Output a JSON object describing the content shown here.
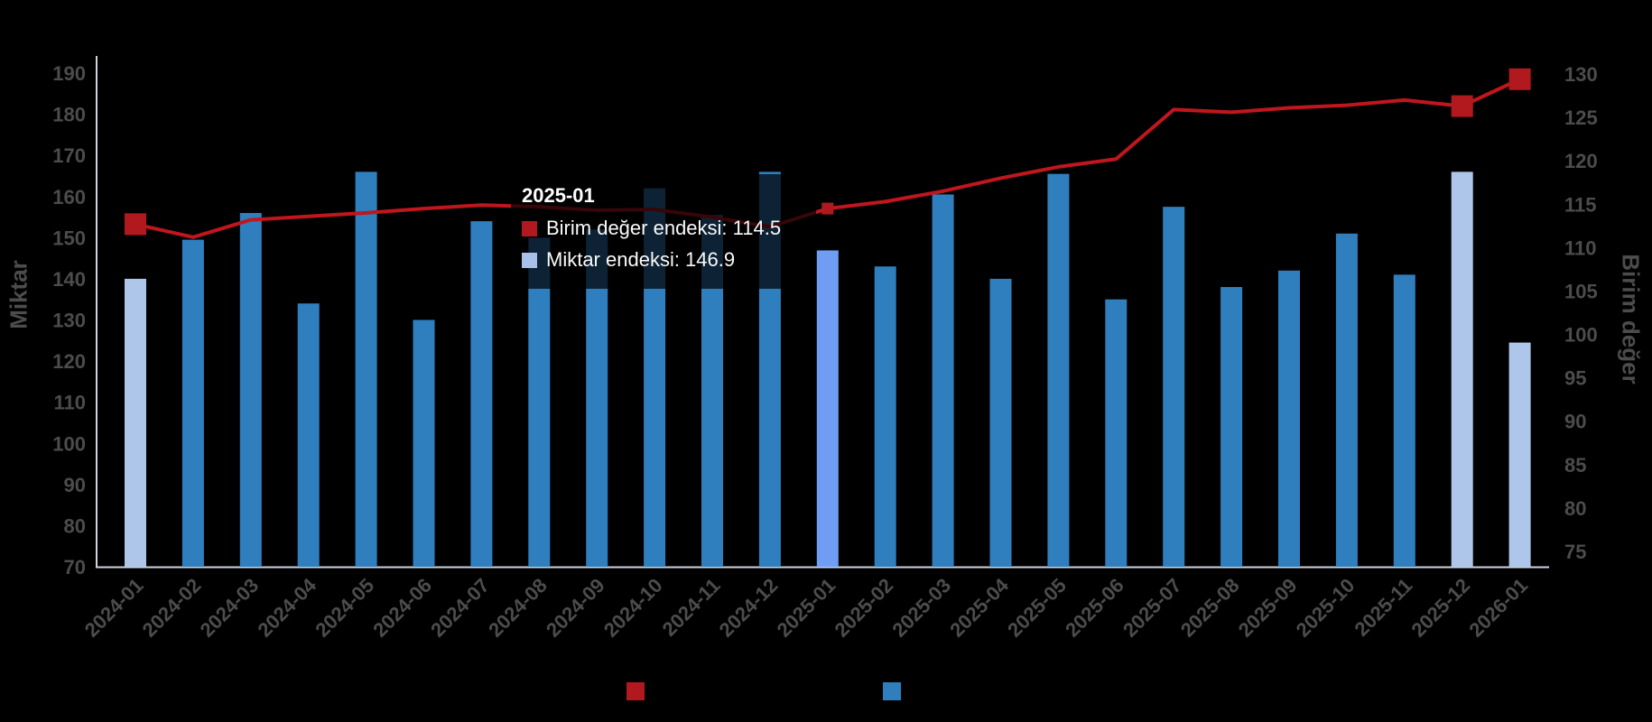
{
  "chart_data": {
    "type": "combo-bar-line",
    "title": "",
    "background": "#000000",
    "categories": [
      "2024-01",
      "2024-02",
      "2024-03",
      "2024-04",
      "2024-05",
      "2024-06",
      "2024-07",
      "2024-08",
      "2024-09",
      "2024-10",
      "2024-11",
      "2024-12",
      "2025-01",
      "2025-02",
      "2025-03",
      "2025-04",
      "2025-05",
      "2025-06",
      "2025-07",
      "2025-08",
      "2025-09",
      "2025-10",
      "2025-11",
      "2025-12",
      "2026-01"
    ],
    "series": [
      {
        "name": "Miktar endeksi",
        "type": "bar",
        "axis": "left",
        "color": "#2f7fbf",
        "light_color": "#aec6ea",
        "active_color": "#6e9df3",
        "light_categories": [
          "2024-01",
          "2025-12",
          "2026-01"
        ],
        "active_category": "2025-01",
        "values": [
          140,
          149.5,
          156,
          134,
          166,
          130,
          154,
          150,
          152,
          162,
          155.5,
          166,
          146.9,
          143,
          160.5,
          140,
          165.5,
          135,
          157.5,
          138,
          142,
          151,
          141,
          166,
          124.5
        ]
      },
      {
        "name": "Birim değer endeksi",
        "type": "line",
        "axis": "right",
        "color": "#c0161d",
        "marker_color": "#b2191f",
        "marker_categories_large": [
          "2024-01",
          "2025-12",
          "2026-01"
        ],
        "marker_category_small": "2025-01",
        "values": [
          112.7,
          111.2,
          113.2,
          113.6,
          114.0,
          114.5,
          114.9,
          114.7,
          114.3,
          114.4,
          113.5,
          112.4,
          114.5,
          115.3,
          116.5,
          118.0,
          119.3,
          120.2,
          125.9,
          125.6,
          126.1,
          126.4,
          127.0,
          126.3,
          129.4
        ]
      }
    ],
    "left_axis": {
      "title": "Miktar",
      "min": 70,
      "max": 190,
      "step": 10,
      "ticks": [
        190,
        180,
        170,
        160,
        150,
        140,
        130,
        120,
        110,
        100,
        90,
        80,
        70
      ]
    },
    "right_axis": {
      "title": "Birim değer",
      "min": 75,
      "max": 130,
      "step": 5,
      "ticks": [
        130,
        125,
        120,
        115,
        110,
        105,
        100,
        95,
        90,
        85,
        80,
        75
      ]
    },
    "x_axis": {
      "labels": [
        "2024-01",
        "2024-02",
        "2024-03",
        "2024-04",
        "2024-05",
        "2024-06",
        "2024-07",
        "2024-08",
        "2024-09",
        "2024-10",
        "2024-11",
        "2024-12",
        "2025-01",
        "2025-02",
        "2025-03",
        "2025-04",
        "2025-05",
        "2025-06",
        "2025-07",
        "2025-08",
        "2025-09",
        "2025-10",
        "2025-11",
        "2025-12",
        "2026-01"
      ]
    },
    "legend_position": "bottom",
    "legend": [
      {
        "label": "Birim değer endeksi",
        "swatch_color": "#b2191f",
        "label_visible": false
      },
      {
        "label": "Miktar endeksi",
        "swatch_color": "#2f7fbf",
        "label_visible": false
      }
    ],
    "tooltip": {
      "title": "2025-01",
      "rows": [
        {
          "swatch_color": "#b2191f",
          "text": "Birim değer endeksi: 114.5"
        },
        {
          "swatch_color": "#a9c0ea",
          "text": "Miktar endeksi: 146.9"
        }
      ]
    },
    "axis_text_color": "#4c4c4c",
    "axis_line_color": "#ccd5e0"
  }
}
